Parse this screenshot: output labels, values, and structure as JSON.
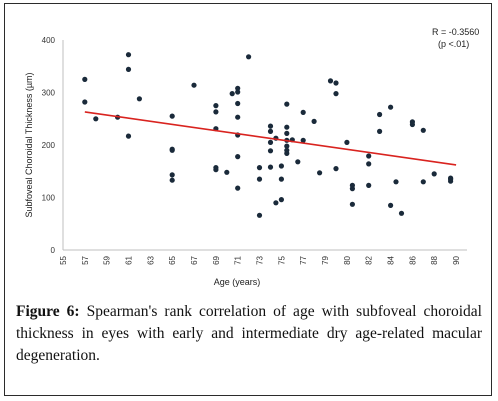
{
  "caption": {
    "label": "Figure 6:",
    "text": " Spearman's rank correlation of age with subfoveal choroidal thickness in eyes with early and intermediate dry age-related macular degeneration."
  },
  "chart_data": {
    "type": "scatter",
    "title": "",
    "xlabel": "Age (years)",
    "ylabel": "Subfoveal Choroidal Thickness  (µm)",
    "xlim": [
      55,
      92
    ],
    "ylim": [
      0,
      400
    ],
    "x_ticks": [
      "55",
      "57",
      "59",
      "61",
      "63",
      "65",
      "67",
      "69",
      "71",
      "73",
      "75",
      "77",
      "79",
      "80",
      "82",
      "84",
      "86",
      "88",
      "90"
    ],
    "y_ticks": [
      "0",
      "100",
      "200",
      "300",
      "400"
    ],
    "grid": false,
    "marker_color": "#1a2a3a",
    "trendline_color": "#d9231f",
    "annotations": [
      "R = -0.3560",
      "(p <.01)"
    ],
    "trendline": {
      "x": [
        57,
        91
      ],
      "y": [
        263,
        162
      ]
    },
    "series": [
      {
        "x": [
          57.0,
          57.0,
          58.0,
          60.0,
          61.0,
          61.0,
          61.0,
          62.0,
          65.0,
          65.0,
          65.0,
          65.0,
          65.0,
          67.0,
          69.0,
          69.0,
          69.0,
          69.0,
          69.0,
          70.0,
          70.5,
          71.0,
          71.0,
          71.0,
          71.0,
          71.0,
          71.0,
          71.0,
          72.0,
          73.0,
          73.0,
          73.0,
          74.0,
          74.0,
          74.0,
          74.0,
          74.0,
          74.5,
          74.5,
          75.0,
          75.0,
          75.0,
          75.5,
          75.5,
          75.5,
          75.5,
          75.5,
          75.5,
          75.5,
          76.0,
          76.5,
          77.0,
          77.0,
          78.0,
          78.5,
          79.5,
          80.0,
          80.0,
          80.0,
          81.0,
          81.5,
          81.5,
          81.5,
          83.0,
          83.0,
          83.0,
          84.0,
          84.0,
          85.0,
          85.0,
          85.5,
          86.0,
          87.0,
          87.0,
          88.0,
          88.0,
          89.0,
          90.5,
          90.5,
          90.5
        ],
        "y": [
          325,
          282,
          250,
          253,
          372,
          344,
          217,
          288,
          255,
          192,
          190,
          143,
          133,
          314,
          275,
          263,
          231,
          157,
          153,
          148,
          298,
          308,
          301,
          279,
          253,
          219,
          178,
          118,
          368,
          66,
          135,
          157,
          236,
          226,
          205,
          189,
          158,
          90,
          213,
          160,
          135,
          96,
          278,
          234,
          222,
          209,
          198,
          190,
          184,
          210,
          168,
          262,
          209,
          245,
          147,
          322,
          318,
          298,
          155,
          205,
          123,
          117,
          87,
          179,
          164,
          123,
          258,
          226,
          272,
          85,
          130,
          70,
          244,
          239,
          130,
          228,
          145,
          137,
          135,
          131
        ]
      }
    ]
  }
}
